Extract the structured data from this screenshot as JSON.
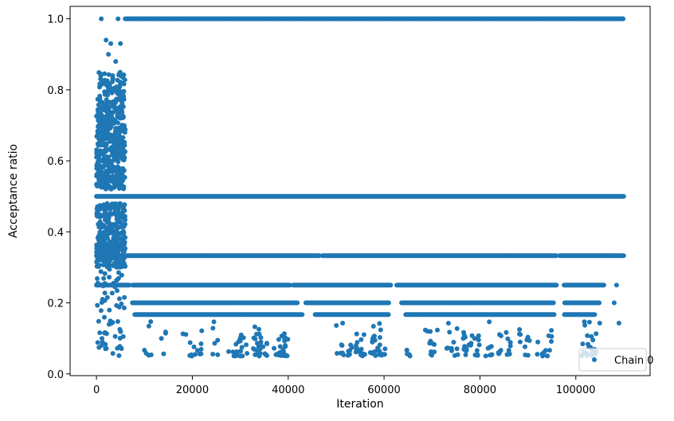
{
  "chart_data": {
    "type": "scatter",
    "title": "",
    "xlabel": "Iteration",
    "ylabel": "Acceptance ratio",
    "xlim": [
      -5500,
      115500
    ],
    "ylim": [
      -0.005,
      1.035
    ],
    "xticks": [
      0,
      20000,
      40000,
      60000,
      80000,
      100000
    ],
    "xtick_labels": [
      "0",
      "20000",
      "40000",
      "60000",
      "80000",
      "100000"
    ],
    "yticks": [
      0.0,
      0.2,
      0.4,
      0.6,
      0.8,
      1.0
    ],
    "ytick_labels": [
      "0.0",
      "0.2",
      "0.4",
      "0.6",
      "0.8",
      "1.0"
    ],
    "grid": false,
    "legend": {
      "position": "lower-right",
      "entries": [
        {
          "name": "Chain 0",
          "color": "#1f77b4",
          "marker": "circle"
        }
      ]
    },
    "series": [
      {
        "name": "Chain 0",
        "color": "#1f77b4",
        "description_of_structure": [],
        "dense_bands": [
          {
            "y": 1.0,
            "x_start": 6000,
            "x_end": 110000
          },
          {
            "y": 0.5,
            "x_start": 0,
            "x_end": 110000
          },
          {
            "y": 0.333,
            "x_start": 0,
            "x_end": 110000,
            "gaps": [
              [
                46500,
                47000
              ],
              [
                96000,
                96500
              ]
            ]
          },
          {
            "y": 0.25,
            "x_start": 0,
            "x_end": 106000,
            "gaps": [
              [
                7000,
                7500
              ],
              [
                40500,
                41000
              ],
              [
                61500,
                62500
              ],
              [
                96000,
                97500
              ]
            ]
          },
          {
            "y": 0.2,
            "x_start": 7500,
            "x_end": 105000,
            "gaps": [
              [
                42000,
                43500
              ],
              [
                61000,
                63500
              ],
              [
                95500,
                97500
              ]
            ]
          },
          {
            "y": 0.167,
            "x_start": 8000,
            "x_end": 104000,
            "gaps": [
              [
                43000,
                45500
              ],
              [
                61000,
                64500
              ],
              [
                95500,
                97500
              ]
            ]
          }
        ],
        "burn_in_region": {
          "x_start": 0,
          "x_end": 6000,
          "y_min": 0.05,
          "y_max": 0.93
        },
        "scattered_lower_values_min": 0.05
      }
    ]
  }
}
